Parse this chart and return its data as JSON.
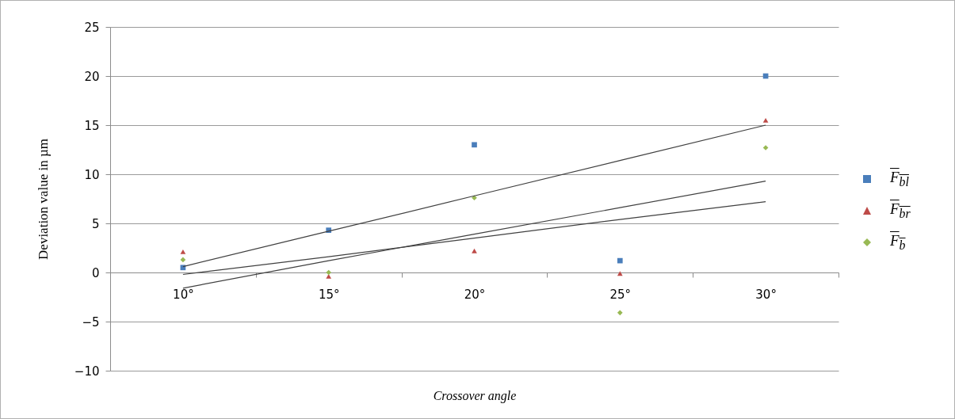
{
  "chart_data": {
    "type": "scatter",
    "xlabel": "Crossover angle",
    "ylabel": "Deviation value in µm",
    "categories": [
      "10°",
      "15°",
      "20°",
      "25°",
      "30°"
    ],
    "ylim": [
      -10,
      25
    ],
    "yticks": [
      -10,
      -5,
      0,
      5,
      10,
      15,
      20,
      25
    ],
    "grid": "y",
    "legend": "right",
    "series": [
      {
        "name": "F$_{bl}$",
        "color": "#4a7ebb",
        "marker": "square",
        "values": [
          0.5,
          4.3,
          13.0,
          1.2,
          20.0
        ]
      },
      {
        "name": "F$_{br}$",
        "color": "#be4b48",
        "marker": "triangle",
        "values": [
          2.1,
          -0.4,
          2.2,
          -0.1,
          15.5
        ]
      },
      {
        "name": "F$_{b}$",
        "color": "#98b954",
        "marker": "diamond",
        "values": [
          1.3,
          0.0,
          7.6,
          -4.1,
          12.7
        ]
      },
      {
        "type": "line",
        "color": "#404040",
        "marker": "none",
        "values": [
          0.6,
          4.2,
          7.8,
          11.4,
          15.0
        ]
      },
      {
        "type": "line",
        "color": "#404040",
        "marker": "none",
        "values": [
          -1.6,
          1.2,
          3.9,
          6.6,
          9.3
        ]
      },
      {
        "type": "line",
        "color": "#404040",
        "marker": "none",
        "values": [
          -0.2,
          1.6,
          3.5,
          5.4,
          7.2
        ]
      }
    ]
  }
}
